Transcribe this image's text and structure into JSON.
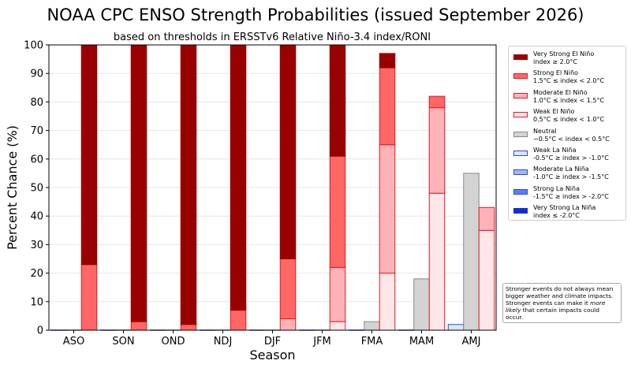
{
  "chart_data": {
    "type": "bar",
    "title": "NOAA CPC ENSO Strength Probabilities (issued September 2026)",
    "subtitle": "based on thresholds in ERSSTv6 Relative Niño-3.4 index/RONI",
    "xlabel": "Season",
    "ylabel": "Percent Chance (%)",
    "ylim": [
      0,
      100
    ],
    "yticks": [
      "0",
      "10",
      "20",
      "30",
      "40",
      "50",
      "60",
      "70",
      "80",
      "90",
      "100"
    ],
    "categories": [
      "ASO",
      "SON",
      "OND",
      "NDJ",
      "DJF",
      "JFM",
      "FMA",
      "MAM",
      "AMJ"
    ],
    "grid": "horizontal",
    "legend_position": "right",
    "groups": [
      {
        "name": "La Niña",
        "color": "#2b4bd6",
        "stack": [
          {
            "series": "Very Strong La Niña",
            "values": [
              0,
              0,
              0,
              0,
              0,
              0,
              0,
              0,
              0
            ]
          },
          {
            "series": "Strong La Niña",
            "values": [
              0,
              0,
              0,
              0,
              0,
              0,
              0,
              0,
              0
            ]
          },
          {
            "series": "Moderate La Niña",
            "values": [
              0,
              0,
              0,
              0,
              0,
              0,
              0,
              0,
              0
            ]
          },
          {
            "series": "Weak La Niña",
            "values": [
              0,
              0,
              0,
              0,
              0,
              0,
              0,
              0,
              2
            ]
          }
        ]
      },
      {
        "name": "Neutral",
        "color": "#888888",
        "stack": [
          {
            "series": "Neutral",
            "values": [
              0,
              0,
              0,
              0,
              0,
              0,
              3,
              18,
              55
            ]
          }
        ]
      },
      {
        "name": "El Niño",
        "color": "#e8181e",
        "stack": [
          {
            "series": "Weak El Niño",
            "values": [
              0,
              0,
              0,
              0,
              0,
              3,
              20,
              48,
              35
            ]
          },
          {
            "series": "Moderate El Niño",
            "values": [
              0,
              0,
              0,
              0,
              4,
              19,
              45,
              30,
              8
            ]
          },
          {
            "series": "Strong El Niño",
            "values": [
              23,
              3,
              2,
              7,
              21,
              39,
              27,
              4,
              0
            ]
          },
          {
            "series": "Very Strong El Niño",
            "values": [
              77,
              97,
              98,
              93,
              75,
              39,
              5,
              0,
              0
            ]
          }
        ]
      }
    ],
    "series_styles": {
      "Very Strong El Niño": {
        "fill": "#990000",
        "edge": "#990000"
      },
      "Strong El Niño": {
        "fill": "#ff6666",
        "edge": "#e8181e"
      },
      "Moderate El Niño": {
        "fill": "#ffb3b8",
        "edge": "#e8181e"
      },
      "Weak El Niño": {
        "fill": "#ffe6e8",
        "edge": "#e8181e"
      },
      "Neutral": {
        "fill": "#d3d3d3",
        "edge": "#888888"
      },
      "Weak La Niña": {
        "fill": "#dde5ff",
        "edge": "#2b4bd6"
      },
      "Moderate La Niña": {
        "fill": "#a3b8ff",
        "edge": "#2b4bd6"
      },
      "Strong La Niña": {
        "fill": "#5b7cff",
        "edge": "#2b4bd6"
      },
      "Very Strong La Niña": {
        "fill": "#1030d0",
        "edge": "#1030d0"
      }
    },
    "legend": [
      {
        "series": "Very Strong El Niño",
        "line1": "Very Strong El Niño",
        "line2": "index ≥ 2.0°C"
      },
      {
        "series": "Strong El Niño",
        "line1": "Strong El Niño",
        "line2": "1.5°C ≤ index < 2.0°C"
      },
      {
        "series": "Moderate El Niño",
        "line1": "Moderate El Niño",
        "line2": "1.0°C ≤ index < 1.5°C"
      },
      {
        "series": "Weak El Niño",
        "line1": "Weak El Niño",
        "line2": "0.5°C ≤ index < 1.0°C"
      },
      {
        "series": "Neutral",
        "line1": "Neutral",
        "line2": "−0.5°C < index < 0.5°C"
      },
      {
        "series": "Weak La Niña",
        "line1": "Weak La Niña",
        "line2": "-0.5°C ≥ index > -1.0°C"
      },
      {
        "series": "Moderate La Niña",
        "line1": "Moderate La Niña",
        "line2": "-1.0°C ≥ index > -1.5°C"
      },
      {
        "series": "Strong La Niña",
        "line1": "Strong La Niña",
        "line2": "-1.5°C ≥ index > -2.0°C"
      },
      {
        "series": "Very Strong La Niña",
        "line1": "Very Strong La Niña",
        "line2": "index ≤ -2.0°C"
      }
    ],
    "note": {
      "before": "Stronger events do not always mean bigger weather and climate impacts. Stronger events can make it ",
      "emphasis": "more likely",
      "after": " that certain impacts could occur."
    }
  }
}
